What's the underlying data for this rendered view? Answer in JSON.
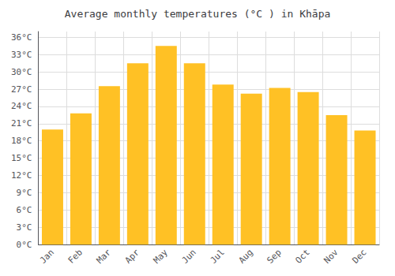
{
  "chart_data": {
    "type": "bar",
    "title": "Average monthly temperatures (°C ) in Khāpa",
    "categories": [
      "Jan",
      "Feb",
      "Mar",
      "Apr",
      "May",
      "Jun",
      "Jul",
      "Aug",
      "Sep",
      "Oct",
      "Nov",
      "Dec"
    ],
    "values": [
      20.0,
      22.8,
      27.5,
      31.5,
      34.5,
      31.5,
      27.8,
      26.2,
      27.2,
      26.5,
      22.5,
      19.8
    ],
    "color": "#FFC125",
    "ylim": [
      0,
      37
    ],
    "yticks": [
      {
        "value": 0,
        "label": "0°C"
      },
      {
        "value": 3,
        "label": "3°C"
      },
      {
        "value": 6,
        "label": "6°C"
      },
      {
        "value": 9,
        "label": "9°C"
      },
      {
        "value": 12,
        "label": "12°C"
      },
      {
        "value": 15,
        "label": "15°C"
      },
      {
        "value": 18,
        "label": "18°C"
      },
      {
        "value": 21,
        "label": "21°C"
      },
      {
        "value": 24,
        "label": "24°C"
      },
      {
        "value": 27,
        "label": "27°C"
      },
      {
        "value": 30,
        "label": "30°C"
      },
      {
        "value": 33,
        "label": "33°C"
      },
      {
        "value": 36,
        "label": "36°C"
      }
    ],
    "grid": true
  }
}
